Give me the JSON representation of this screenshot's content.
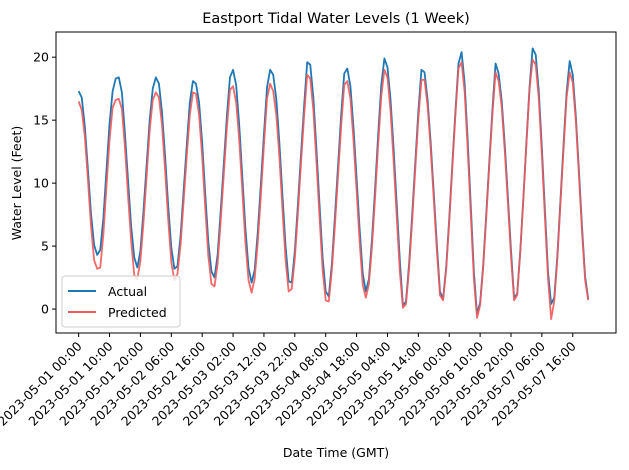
{
  "chart_data": {
    "type": "line",
    "title": "Eastport Tidal Water Levels (1 Week)",
    "xlabel": "Date Time (GMT)",
    "ylabel": "Water Level (Feet)",
    "x_start": "2023-05-01 00:00",
    "x_step_hours": 1,
    "xlim": [
      "2023-04-30 16:40",
      "2023-05-08 06:00"
    ],
    "ylim": [
      -1.9,
      22.0
    ],
    "xticks": [
      "2023-05-01 00:00",
      "2023-05-01 10:00",
      "2023-05-01 20:00",
      "2023-05-02 06:00",
      "2023-05-02 16:00",
      "2023-05-03 02:00",
      "2023-05-03 12:00",
      "2023-05-03 22:00",
      "2023-05-04 08:00",
      "2023-05-04 18:00",
      "2023-05-05 04:00",
      "2023-05-05 14:00",
      "2023-05-06 00:00",
      "2023-05-06 10:00",
      "2023-05-06 20:00",
      "2023-05-07 06:00",
      "2023-05-07 16:00"
    ],
    "yticks": [
      0,
      5,
      10,
      15,
      20
    ],
    "legend_position": "lower-left",
    "grid": false,
    "series": [
      {
        "name": "Actual",
        "color": "#1f77b4",
        "values": [
          17.3,
          16.8,
          14.5,
          11.1,
          7.6,
          5.1,
          4.3,
          4.7,
          7.2,
          11.0,
          14.7,
          17.3,
          18.3,
          18.4,
          17.2,
          13.9,
          10.2,
          6.6,
          4.1,
          3.3,
          4.6,
          7.8,
          11.4,
          15.0,
          17.5,
          18.4,
          17.9,
          15.6,
          12.1,
          8.2,
          4.9,
          3.2,
          3.4,
          5.8,
          9.4,
          13.0,
          16.4,
          18.1,
          17.9,
          16.4,
          13.2,
          9.1,
          5.3,
          3.0,
          2.5,
          4.3,
          7.8,
          11.5,
          15.3,
          18.4,
          19.0,
          17.8,
          14.6,
          10.5,
          6.4,
          3.3,
          2.1,
          3.1,
          6.1,
          9.9,
          13.9,
          17.6,
          19.0,
          18.6,
          16.7,
          13.2,
          9.0,
          5.0,
          2.2,
          2.1,
          4.6,
          8.3,
          12.3,
          16.1,
          19.6,
          19.4,
          16.8,
          12.7,
          8.3,
          4.1,
          1.4,
          1.0,
          3.6,
          7.4,
          11.4,
          15.4,
          18.7,
          19.1,
          17.7,
          14.4,
          10.4,
          6.3,
          2.8,
          1.4,
          2.4,
          5.6,
          9.6,
          13.9,
          17.8,
          19.9,
          19.2,
          16.6,
          12.7,
          8.3,
          3.9,
          0.3,
          0.6,
          3.6,
          7.5,
          11.6,
          15.7,
          19.0,
          18.8,
          16.6,
          13.2,
          9.2,
          5.1,
          1.4,
          0.8,
          3.3,
          7.2,
          11.5,
          15.7,
          19.5,
          20.4,
          17.9,
          13.3,
          8.1,
          2.9,
          -0.4,
          0.5,
          3.5,
          7.6,
          11.8,
          15.9,
          19.5,
          18.7,
          16.5,
          13.0,
          8.9,
          4.7,
          0.9,
          1.2,
          4.6,
          8.8,
          13.3,
          17.6,
          20.7,
          20.2,
          17.3,
          12.8,
          7.8,
          2.9,
          0.4,
          0.9,
          4.2,
          8.6,
          13.0,
          17.2,
          19.7,
          18.6,
          15.3,
          11.0,
          6.5,
          2.6,
          0.8
        ]
      },
      {
        "name": "Predicted",
        "color": "#ef5a5a",
        "values": [
          16.5,
          15.8,
          13.7,
          10.3,
          6.6,
          3.9,
          3.2,
          3.3,
          5.9,
          9.7,
          13.4,
          16.0,
          16.6,
          16.7,
          15.9,
          12.8,
          9.0,
          5.4,
          2.7,
          2.4,
          3.8,
          6.9,
          10.5,
          14.2,
          16.6,
          17.2,
          16.8,
          14.6,
          11.0,
          7.1,
          3.7,
          2.3,
          2.8,
          5.1,
          8.6,
          12.1,
          15.4,
          17.2,
          17.1,
          15.4,
          12.1,
          8.0,
          4.2,
          2.0,
          1.8,
          3.6,
          7.0,
          10.7,
          14.4,
          17.4,
          17.7,
          16.4,
          13.4,
          9.4,
          5.3,
          2.3,
          1.3,
          2.4,
          5.3,
          9.0,
          13.0,
          16.7,
          17.9,
          17.3,
          15.4,
          12.1,
          7.9,
          3.9,
          1.4,
          1.6,
          4.0,
          7.6,
          11.6,
          15.3,
          18.6,
          18.3,
          15.8,
          11.7,
          7.3,
          3.1,
          0.7,
          0.6,
          3.1,
          6.7,
          10.6,
          14.5,
          17.8,
          18.1,
          16.7,
          13.4,
          9.4,
          5.3,
          1.9,
          0.9,
          2.0,
          5.0,
          8.9,
          13.1,
          16.9,
          19.0,
          18.4,
          15.7,
          11.7,
          7.3,
          3.0,
          0.1,
          0.4,
          3.2,
          7.0,
          11.1,
          15.1,
          18.2,
          18.2,
          16.1,
          12.7,
          8.7,
          4.6,
          1.1,
          0.7,
          3.1,
          6.9,
          11.2,
          15.4,
          19.1,
          19.6,
          17.2,
          12.6,
          7.4,
          2.3,
          -0.7,
          0.3,
          3.3,
          7.3,
          11.5,
          15.5,
          18.8,
          18.1,
          16.0,
          12.5,
          8.4,
          4.2,
          0.7,
          1.1,
          4.5,
          8.7,
          13.1,
          17.4,
          19.8,
          19.4,
          16.7,
          12.2,
          7.2,
          2.4,
          -0.8,
          0.6,
          3.9,
          8.3,
          12.6,
          16.8,
          18.8,
          18.0,
          14.9,
          10.6,
          6.1,
          2.3,
          0.7
        ]
      }
    ]
  }
}
